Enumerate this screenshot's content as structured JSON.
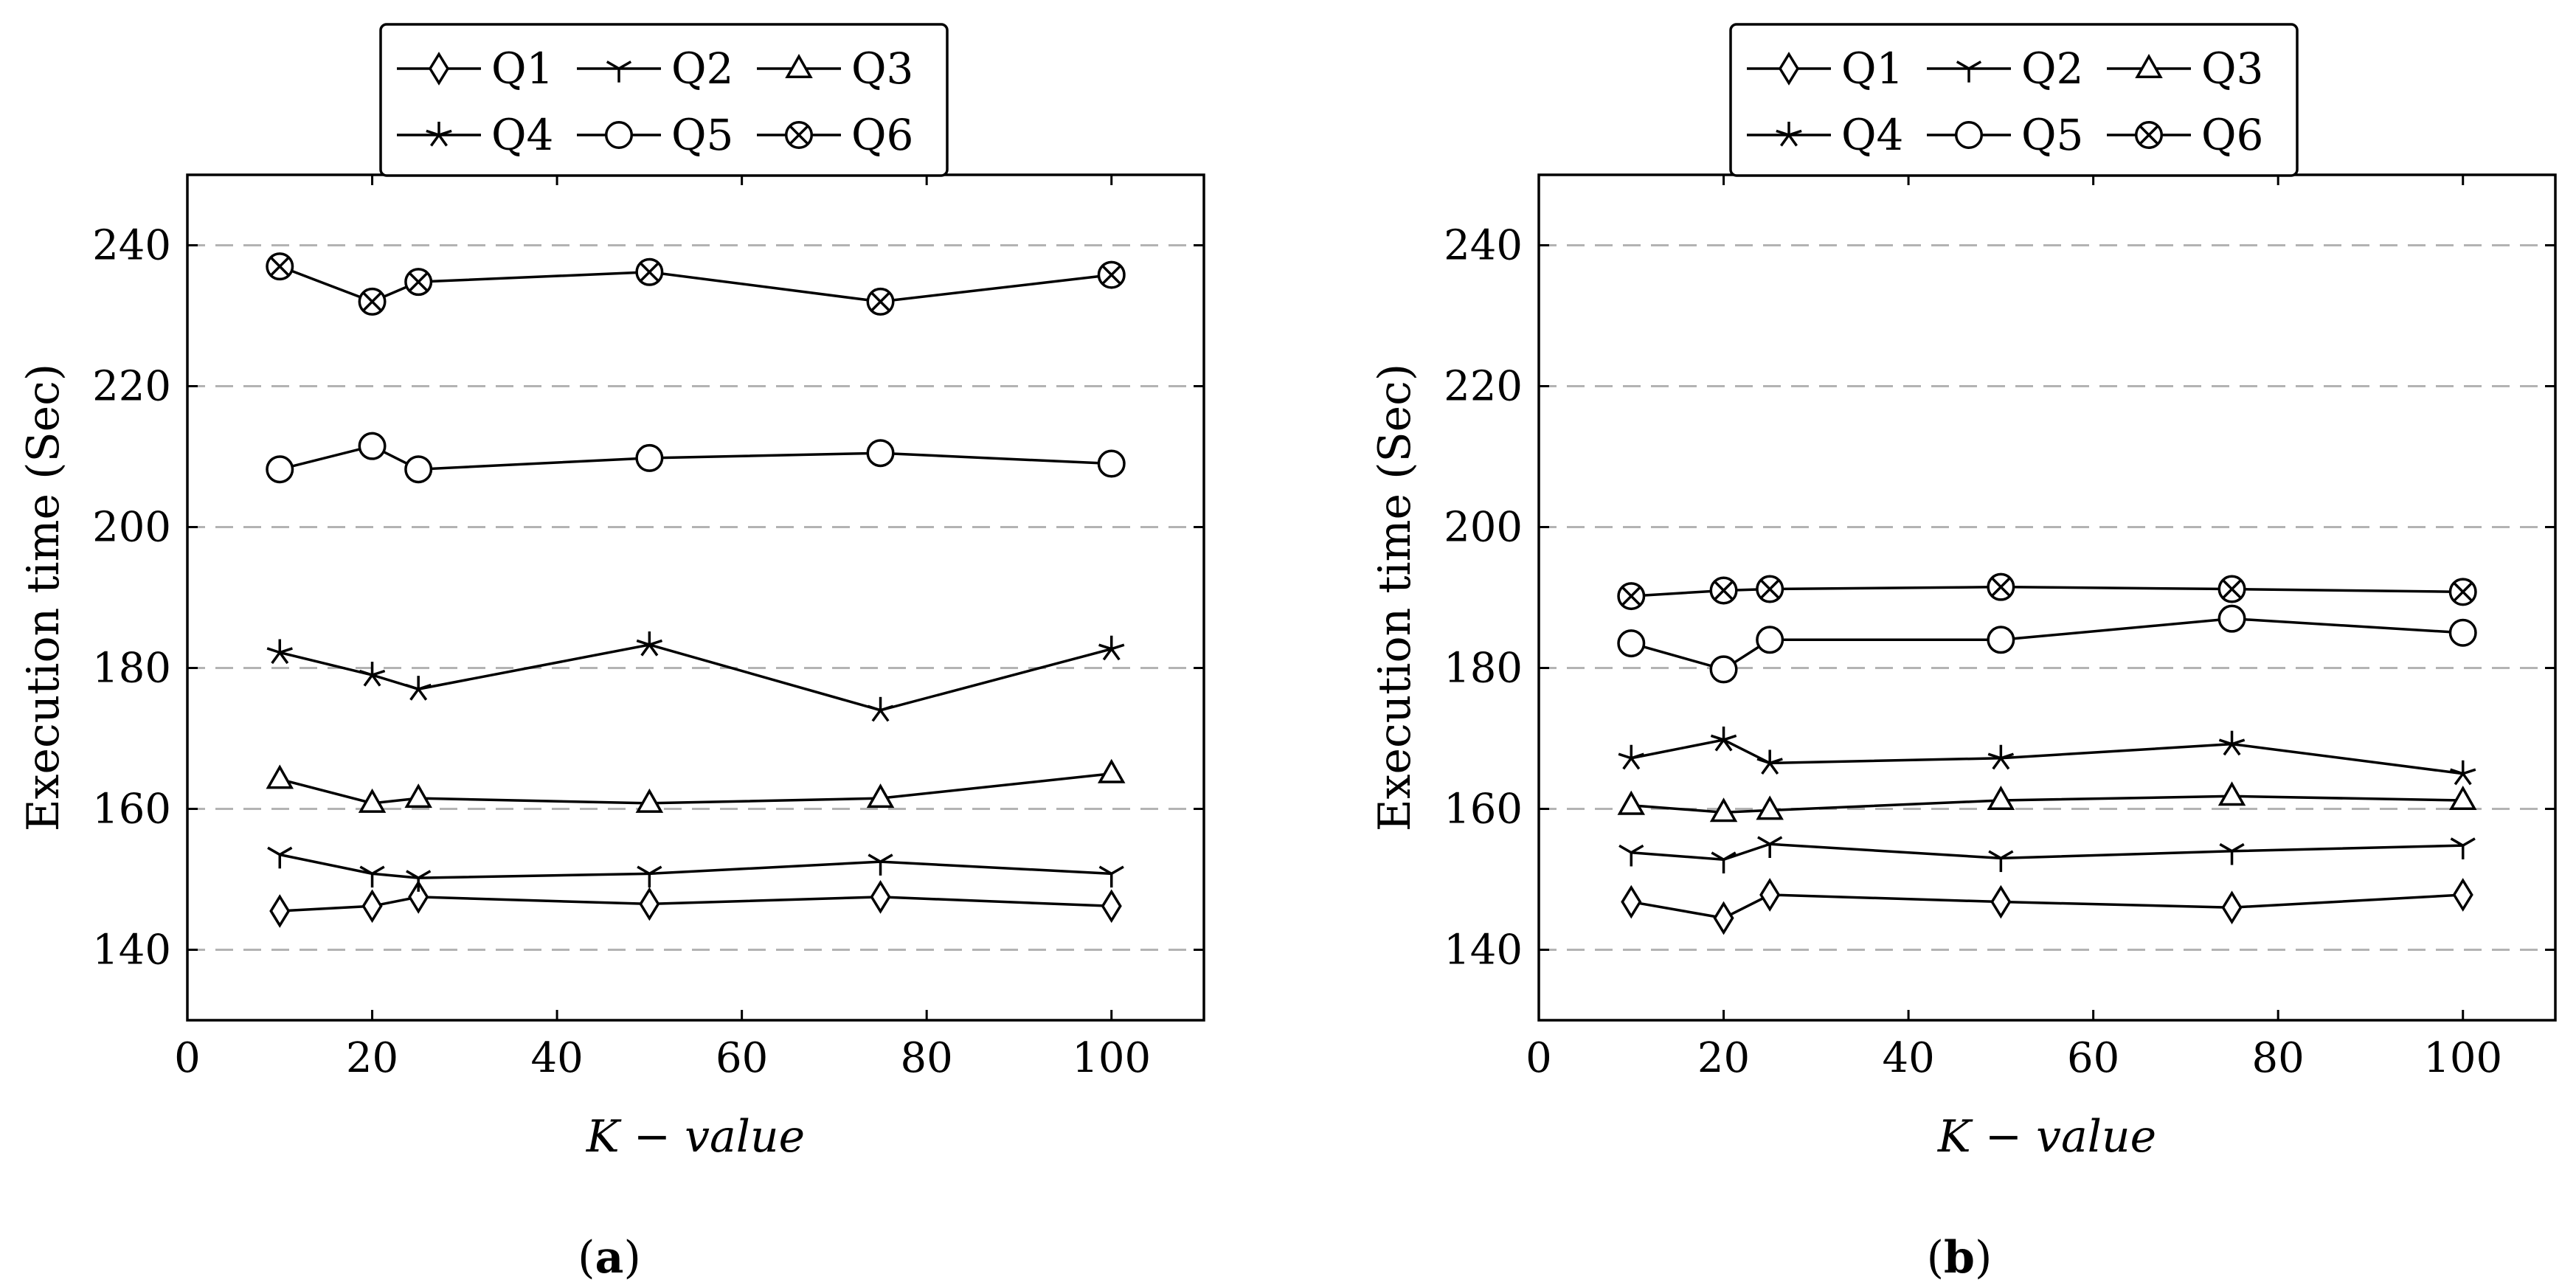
{
  "figure": {
    "captions": [
      "a",
      "b"
    ]
  },
  "chart_data": [
    {
      "type": "line",
      "panel": "a",
      "xlabel": "K − value",
      "ylabel": "Execution time (Sec)",
      "xlim": [
        0,
        110
      ],
      "ylim": [
        130,
        250
      ],
      "xticks": [
        0,
        20,
        40,
        60,
        80,
        100
      ],
      "yticks": [
        140,
        160,
        180,
        200,
        220,
        240
      ],
      "grid": "horizontal-dashed",
      "legend_position": "top-center",
      "x": [
        10,
        20,
        25,
        50,
        75,
        100
      ],
      "series": [
        {
          "name": "Q1",
          "marker": "diamond",
          "values": [
            145.5,
            146.2,
            147.5,
            146.5,
            147.5,
            146.2
          ]
        },
        {
          "name": "Q2",
          "marker": "tri-cross",
          "values": [
            153.5,
            150.8,
            150.2,
            150.8,
            152.5,
            150.8
          ]
        },
        {
          "name": "Q3",
          "marker": "triangle",
          "values": [
            164.2,
            160.8,
            161.5,
            160.8,
            161.5,
            165.0
          ]
        },
        {
          "name": "Q4",
          "marker": "star",
          "values": [
            182.2,
            179.0,
            177.0,
            183.3,
            174.0,
            182.7
          ]
        },
        {
          "name": "Q5",
          "marker": "circle",
          "values": [
            208.2,
            211.5,
            208.2,
            209.8,
            210.5,
            209.0
          ]
        },
        {
          "name": "Q6",
          "marker": "circle-x",
          "values": [
            237.0,
            232.0,
            234.8,
            236.2,
            232.0,
            235.8
          ]
        }
      ]
    },
    {
      "type": "line",
      "panel": "b",
      "xlabel": "K − value",
      "ylabel": "Execution time (Sec)",
      "xlim": [
        0,
        110
      ],
      "ylim": [
        130,
        250
      ],
      "xticks": [
        0,
        20,
        40,
        60,
        80,
        100
      ],
      "yticks": [
        140,
        160,
        180,
        200,
        220,
        240
      ],
      "grid": "horizontal-dashed",
      "legend_position": "top-center",
      "x": [
        10,
        20,
        25,
        50,
        75,
        100
      ],
      "series": [
        {
          "name": "Q1",
          "marker": "diamond",
          "values": [
            146.8,
            144.5,
            147.8,
            146.8,
            146.0,
            147.8
          ]
        },
        {
          "name": "Q2",
          "marker": "tri-cross",
          "values": [
            153.8,
            152.8,
            155.0,
            153.0,
            154.0,
            154.8
          ]
        },
        {
          "name": "Q3",
          "marker": "triangle",
          "values": [
            160.5,
            159.5,
            159.8,
            161.2,
            161.8,
            161.2
          ]
        },
        {
          "name": "Q4",
          "marker": "star",
          "values": [
            167.2,
            169.8,
            166.5,
            167.2,
            169.2,
            165.0
          ]
        },
        {
          "name": "Q5",
          "marker": "circle",
          "values": [
            183.5,
            179.8,
            184.0,
            184.0,
            187.0,
            185.0
          ]
        },
        {
          "name": "Q6",
          "marker": "circle-x",
          "values": [
            190.2,
            191.0,
            191.2,
            191.5,
            191.2,
            190.8
          ]
        }
      ]
    }
  ]
}
